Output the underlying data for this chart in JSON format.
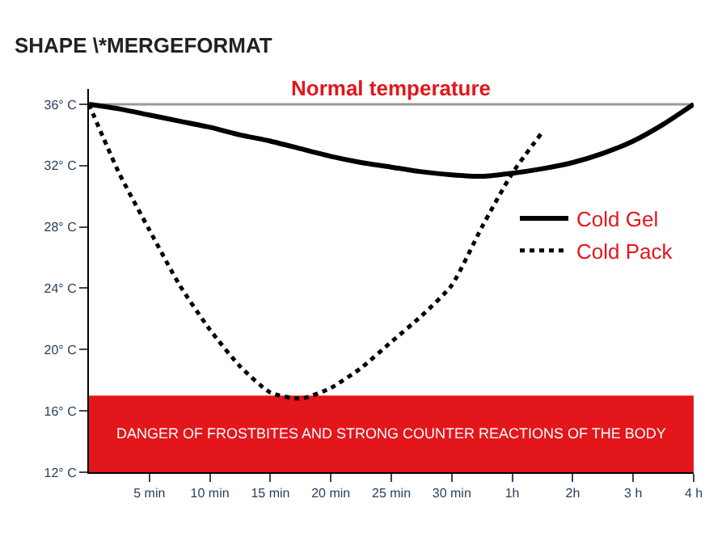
{
  "chart_data": {
    "type": "line",
    "title": "SHAPE \\*MERGEFORMAT",
    "categories": [
      null,
      null,
      "5 min",
      null,
      "10 min",
      null,
      "15 min",
      null,
      "20 min",
      null,
      "25 min",
      null,
      "30 min",
      null,
      "1h",
      null,
      "2h",
      null,
      "3 h",
      null,
      "4 h"
    ],
    "series": [
      {
        "name": "Cold Gel",
        "color": "#000000",
        "line_style": "solid",
        "values": [
          36,
          35.7,
          35.3,
          34.9,
          34.5,
          34.0,
          33.6,
          33.1,
          32.6,
          32.2,
          31.9,
          31.6,
          31.4,
          31.3,
          31.5,
          31.8,
          32.2,
          32.8,
          33.6,
          34.7,
          36
        ]
      },
      {
        "name": "Cold Pack",
        "color": "#000000",
        "line_style": "dotted",
        "values": [
          36,
          31.5,
          27.8,
          24.2,
          21.3,
          18.9,
          17.2,
          16.8,
          17.5,
          18.8,
          20.5,
          22.2,
          24.2,
          28.0,
          31.5,
          34.2,
          null,
          null,
          null,
          null,
          null
        ]
      }
    ],
    "ylim": [
      12,
      37
    ],
    "yticks": [
      {
        "value": 12,
        "label": "12° C"
      },
      {
        "value": 16,
        "label": "16° C"
      },
      {
        "value": 20,
        "label": "20° C"
      },
      {
        "value": 24,
        "label": "24° C"
      },
      {
        "value": 28,
        "label": "28° C"
      },
      {
        "value": 32,
        "label": "32° C"
      },
      {
        "value": 36,
        "label": "36° C"
      }
    ],
    "ref_lines": [
      {
        "axis": "y",
        "value": 36,
        "label": "Normal temperature",
        "color": "#999999"
      }
    ],
    "bands": [
      {
        "axis": "y",
        "from": 12,
        "to": 17,
        "label": "DANGER OF FROSTBITES AND STRONG COUNTER REACTIONS OF THE BODY",
        "color": "#e3161b"
      }
    ],
    "legend": "right",
    "grid": false,
    "marker": "none"
  }
}
